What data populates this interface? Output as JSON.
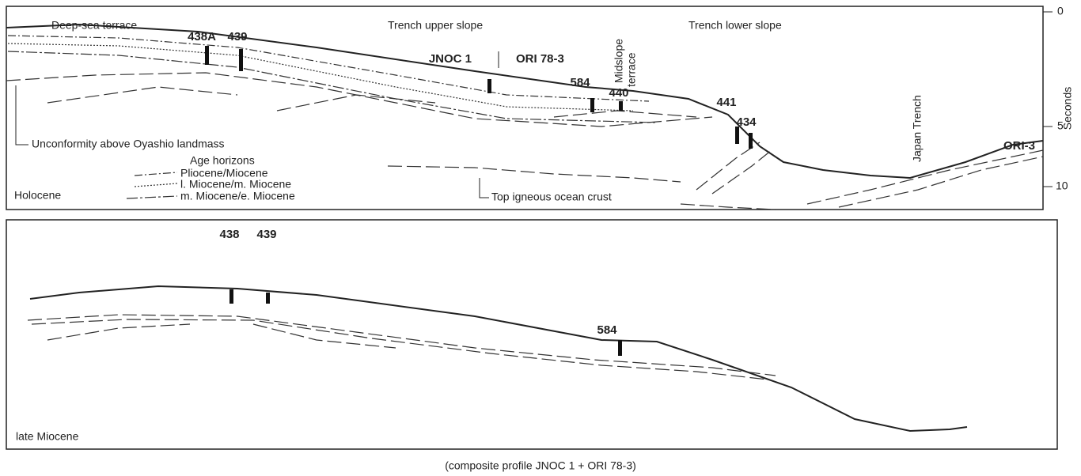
{
  "top_panel": {
    "zones": [
      "Deep-sea terrace",
      "Trench upper slope",
      "Trench lower slope"
    ],
    "sites": [
      "438A",
      "439",
      "584",
      "440",
      "441",
      "434"
    ],
    "profiles": {
      "left": "JNOC 1",
      "right": "ORI 78-3"
    },
    "midslope": [
      "Midslope",
      "terrace"
    ],
    "trench": "Japan Trench",
    "far_profile": "ORI-3",
    "unconformity": "Unconformity above Oyashio landmass",
    "crust": "Top igneous ocean crust",
    "legend": {
      "title": "Age horizons",
      "items": [
        "Pliocene/Miocene",
        "l. Miocene/m. Miocene",
        "m. Miocene/e. Miocene"
      ]
    },
    "epoch": "Holocene",
    "axis": {
      "label": "Seconds",
      "ticks": [
        0,
        5,
        10
      ]
    }
  },
  "bottom_panel": {
    "sites": [
      "438",
      "439",
      "584"
    ],
    "epoch": "late Miocene"
  },
  "caption": "(composite profile JNOC 1 + ORI 78-3)"
}
